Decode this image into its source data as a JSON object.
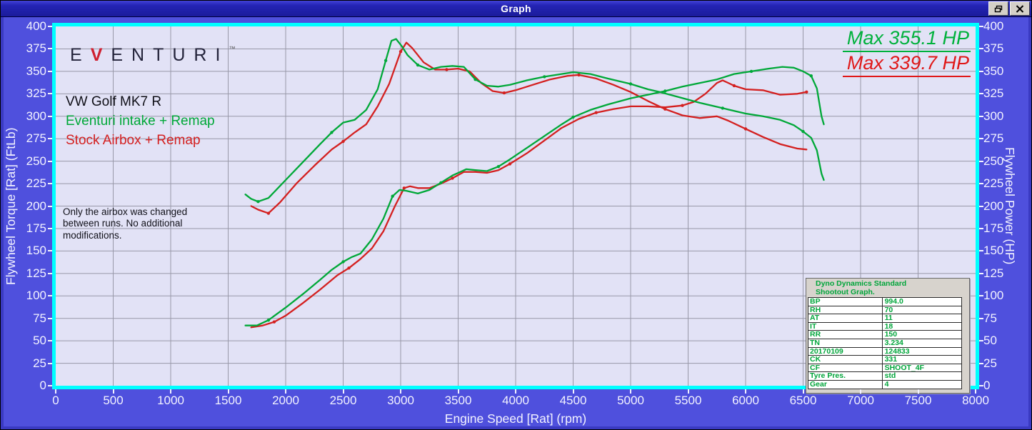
{
  "window": {
    "title": "Graph",
    "buttons": {
      "restore": "restore",
      "close": "close"
    }
  },
  "chart_data": {
    "type": "line",
    "title": "Dyno Dynamics Standard Shootout Graph",
    "grid": true,
    "plot_bg": "#e2e2f6",
    "grid_color": "#9898a8",
    "frame_color": "#00ffff",
    "x_axis": {
      "label": "Engine Speed [Rat] (rpm)",
      "min": 0,
      "max": 8000,
      "tick_step": 500,
      "ticks": [
        0,
        500,
        1000,
        1500,
        2000,
        2500,
        3000,
        3500,
        4000,
        4500,
        5000,
        5500,
        6000,
        6500,
        7000,
        7500,
        8000
      ]
    },
    "y_left": {
      "label": "Flywheel Torque [Rat] (FtLb)",
      "min": 0,
      "max": 400,
      "tick_step": 25,
      "ticks": [
        0,
        25,
        50,
        75,
        100,
        125,
        150,
        175,
        200,
        225,
        250,
        275,
        300,
        325,
        350,
        375,
        400
      ]
    },
    "y_right": {
      "label": "Flywheel Power (HP)",
      "min": 0,
      "max": 400,
      "tick_step": 25,
      "ticks": [
        0,
        25,
        50,
        75,
        100,
        125,
        150,
        175,
        200,
        225,
        250,
        275,
        300,
        325,
        350,
        375,
        400
      ]
    },
    "annotations": {
      "max_green": "Max 355.1 HP",
      "max_red": "Max 339.7 HP"
    },
    "series": [
      {
        "name": "Stock Airbox + Remap — Torque (FtLb)",
        "color": "#d42020",
        "axis": "left",
        "points": [
          [
            1700,
            200
          ],
          [
            1760,
            196
          ],
          [
            1850,
            192
          ],
          [
            1950,
            204
          ],
          [
            2100,
            226
          ],
          [
            2250,
            245
          ],
          [
            2400,
            263
          ],
          [
            2500,
            272
          ],
          [
            2600,
            282
          ],
          [
            2700,
            291
          ],
          [
            2800,
            311
          ],
          [
            2900,
            336
          ],
          [
            3000,
            372
          ],
          [
            3050,
            382
          ],
          [
            3100,
            376
          ],
          [
            3200,
            360
          ],
          [
            3300,
            352
          ],
          [
            3400,
            352
          ],
          [
            3500,
            353
          ],
          [
            3600,
            350
          ],
          [
            3700,
            337
          ],
          [
            3800,
            328
          ],
          [
            3900,
            326
          ],
          [
            4000,
            329
          ],
          [
            4150,
            335
          ],
          [
            4300,
            341
          ],
          [
            4450,
            345
          ],
          [
            4550,
            346
          ],
          [
            4700,
            342
          ],
          [
            4850,
            335
          ],
          [
            5000,
            327
          ],
          [
            5150,
            317
          ],
          [
            5300,
            308
          ],
          [
            5450,
            301
          ],
          [
            5600,
            298
          ],
          [
            5750,
            300
          ],
          [
            5850,
            295
          ],
          [
            6000,
            286
          ],
          [
            6150,
            277
          ],
          [
            6300,
            269
          ],
          [
            6450,
            264
          ],
          [
            6530,
            263
          ]
        ]
      },
      {
        "name": "Stock Airbox + Remap — Power (HP)",
        "color": "#d42020",
        "axis": "right",
        "points": [
          [
            1700,
            65
          ],
          [
            1800,
            67
          ],
          [
            1900,
            71
          ],
          [
            2000,
            78
          ],
          [
            2150,
            92
          ],
          [
            2300,
            107
          ],
          [
            2450,
            123
          ],
          [
            2550,
            131
          ],
          [
            2650,
            141
          ],
          [
            2750,
            153
          ],
          [
            2850,
            172
          ],
          [
            2950,
            200
          ],
          [
            3030,
            220
          ],
          [
            3080,
            222
          ],
          [
            3150,
            220
          ],
          [
            3250,
            220
          ],
          [
            3350,
            225
          ],
          [
            3450,
            231
          ],
          [
            3550,
            238
          ],
          [
            3650,
            238
          ],
          [
            3750,
            237
          ],
          [
            3850,
            240
          ],
          [
            3950,
            247
          ],
          [
            4100,
            259
          ],
          [
            4250,
            273
          ],
          [
            4400,
            287
          ],
          [
            4550,
            297
          ],
          [
            4700,
            304
          ],
          [
            4850,
            308
          ],
          [
            5000,
            311
          ],
          [
            5150,
            311
          ],
          [
            5300,
            310
          ],
          [
            5450,
            312
          ],
          [
            5550,
            316
          ],
          [
            5650,
            325
          ],
          [
            5750,
            337
          ],
          [
            5800,
            340
          ],
          [
            5900,
            334
          ],
          [
            6000,
            330
          ],
          [
            6150,
            329
          ],
          [
            6300,
            324
          ],
          [
            6450,
            325
          ],
          [
            6530,
            327
          ]
        ]
      },
      {
        "name": "Eventuri intake + Remap — Torque (FtLb)",
        "color": "#00a838",
        "axis": "left",
        "points": [
          [
            1650,
            213
          ],
          [
            1700,
            208
          ],
          [
            1760,
            205
          ],
          [
            1850,
            209
          ],
          [
            2000,
            229
          ],
          [
            2150,
            249
          ],
          [
            2300,
            269
          ],
          [
            2400,
            282
          ],
          [
            2500,
            293
          ],
          [
            2600,
            296
          ],
          [
            2700,
            307
          ],
          [
            2800,
            330
          ],
          [
            2870,
            362
          ],
          [
            2920,
            384
          ],
          [
            2960,
            386
          ],
          [
            3010,
            378
          ],
          [
            3060,
            368
          ],
          [
            3150,
            357
          ],
          [
            3250,
            352
          ],
          [
            3350,
            355
          ],
          [
            3450,
            356
          ],
          [
            3550,
            355
          ],
          [
            3650,
            341
          ],
          [
            3750,
            334
          ],
          [
            3850,
            333
          ],
          [
            3950,
            335
          ],
          [
            4100,
            340
          ],
          [
            4250,
            344
          ],
          [
            4400,
            347
          ],
          [
            4500,
            349
          ],
          [
            4650,
            347
          ],
          [
            4800,
            342
          ],
          [
            5000,
            336
          ],
          [
            5150,
            330
          ],
          [
            5252,
            327
          ],
          [
            5400,
            322
          ],
          [
            5600,
            315
          ],
          [
            5800,
            309
          ],
          [
            6000,
            303
          ],
          [
            6150,
            300
          ],
          [
            6300,
            296
          ],
          [
            6420,
            290
          ],
          [
            6500,
            283
          ],
          [
            6570,
            276
          ],
          [
            6620,
            262
          ],
          [
            6660,
            236
          ],
          [
            6680,
            229
          ]
        ]
      },
      {
        "name": "Eventuri intake + Remap — Power (HP)",
        "color": "#00a838",
        "axis": "right",
        "points": [
          [
            1650,
            67
          ],
          [
            1750,
            67
          ],
          [
            1850,
            73
          ],
          [
            2000,
            87
          ],
          [
            2150,
            102
          ],
          [
            2300,
            118
          ],
          [
            2400,
            129
          ],
          [
            2500,
            138
          ],
          [
            2570,
            143
          ],
          [
            2650,
            147
          ],
          [
            2750,
            163
          ],
          [
            2850,
            186
          ],
          [
            2930,
            211
          ],
          [
            2990,
            218
          ],
          [
            3050,
            217
          ],
          [
            3150,
            214
          ],
          [
            3250,
            218
          ],
          [
            3350,
            226
          ],
          [
            3450,
            234
          ],
          [
            3570,
            241
          ],
          [
            3650,
            240
          ],
          [
            3750,
            239
          ],
          [
            3850,
            244
          ],
          [
            3950,
            252
          ],
          [
            4100,
            265
          ],
          [
            4250,
            278
          ],
          [
            4400,
            291
          ],
          [
            4500,
            299
          ],
          [
            4650,
            307
          ],
          [
            4800,
            313
          ],
          [
            5000,
            320
          ],
          [
            5150,
            324
          ],
          [
            5300,
            328
          ],
          [
            5450,
            333
          ],
          [
            5600,
            337
          ],
          [
            5750,
            341
          ],
          [
            5900,
            347
          ],
          [
            6050,
            350
          ],
          [
            6200,
            353
          ],
          [
            6320,
            355
          ],
          [
            6420,
            354
          ],
          [
            6500,
            350
          ],
          [
            6570,
            345
          ],
          [
            6620,
            331
          ],
          [
            6660,
            300
          ],
          [
            6680,
            291
          ]
        ]
      }
    ]
  },
  "overlays": {
    "logo": {
      "pre": "E",
      "v": "V",
      "post": "ENTURI",
      "tm": "™"
    },
    "legend": {
      "title": "VW Golf MK7 R",
      "green": "Eventuri intake + Remap",
      "red": "Stock Airbox + Remap"
    },
    "note": "Only the airbox was changed between runs. No additional modifications.",
    "table": {
      "header_line1": "Dyno Dynamics Standard",
      "header_line2": "Shootout Graph.",
      "rows": [
        [
          "BP",
          "994.0"
        ],
        [
          "RH",
          "70"
        ],
        [
          "AT",
          "11"
        ],
        [
          "IT",
          "18"
        ],
        [
          "RR",
          "150"
        ],
        [
          "TN",
          "3.234"
        ],
        [
          "20170109",
          "124833"
        ],
        [
          "CK",
          "331"
        ],
        [
          "CF",
          "SHOOT_4F"
        ],
        [
          "Tyre Pres.",
          "std"
        ],
        [
          "Gear",
          "4"
        ]
      ]
    }
  }
}
